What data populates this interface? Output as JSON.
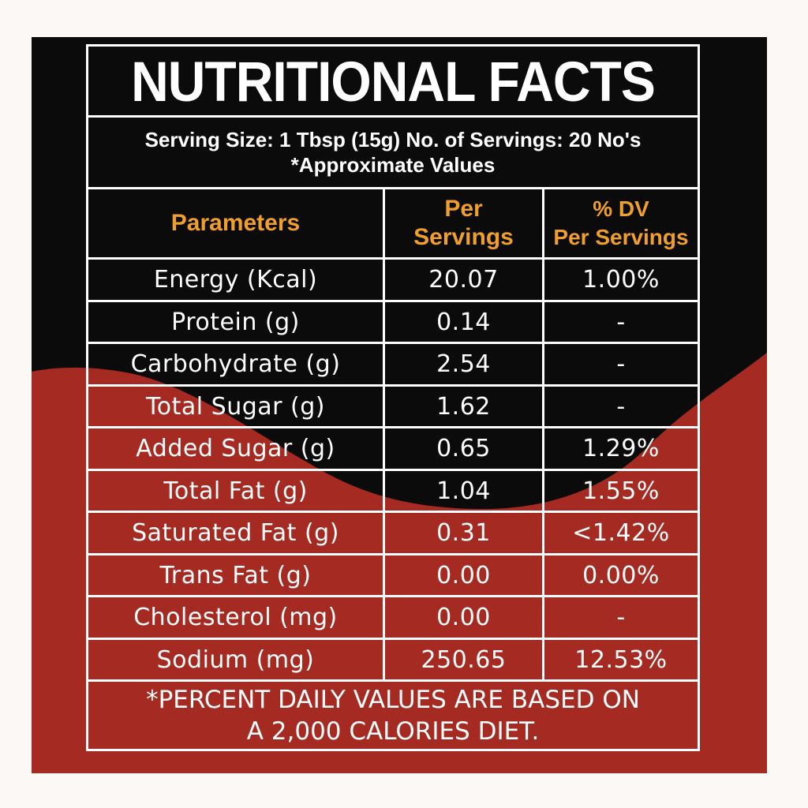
{
  "title": "NUTRITIONAL FACTS",
  "serving_line1": "Serving Size: 1 Tbsp (15g) No. of Servings: 20 No's",
  "serving_line2": "*Approximate Values",
  "headers": {
    "parameters": "Parameters",
    "per_servings_1": "Per",
    "per_servings_2": "Servings",
    "dv_1": "% DV",
    "dv_2": "Per Servings"
  },
  "rows": [
    {
      "parameter": "Energy (Kcal)",
      "per_serving": "20.07",
      "dv": "1.00%"
    },
    {
      "parameter": "Protein (g)",
      "per_serving": "0.14",
      "dv": "-"
    },
    {
      "parameter": "Carbohydrate (g)",
      "per_serving": "2.54",
      "dv": "-"
    },
    {
      "parameter": "Total Sugar (g)",
      "per_serving": "1.62",
      "dv": "-"
    },
    {
      "parameter": "Added Sugar (g)",
      "per_serving": "0.65",
      "dv": "1.29%"
    },
    {
      "parameter": "Total Fat (g)",
      "per_serving": "1.04",
      "dv": "1.55%"
    },
    {
      "parameter": "Saturated Fat (g)",
      "per_serving": "0.31",
      "dv": "<1.42%"
    },
    {
      "parameter": "Trans Fat (g)",
      "per_serving": "0.00",
      "dv": "0.00%"
    },
    {
      "parameter": "Cholesterol (mg)",
      "per_serving": "0.00",
      "dv": "-"
    },
    {
      "parameter": "Sodium (mg)",
      "per_serving": "250.65",
      "dv": "12.53%"
    }
  ],
  "footnote_line1": "*PERCENT DAILY VALUES ARE BASED ON",
  "footnote_line2": "A 2,000 CALORIES DIET.",
  "colors": {
    "background_black": "#0b0b0b",
    "background_red": "#a52a22",
    "header_orange": "#f0a02a",
    "text_white": "#ffffff"
  }
}
